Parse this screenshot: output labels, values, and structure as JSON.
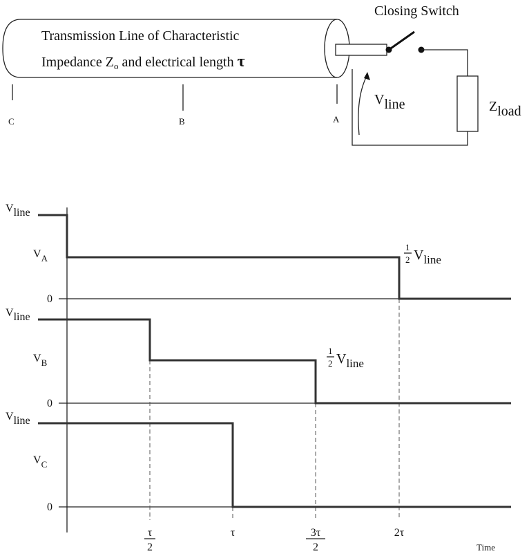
{
  "switch_label": "Closing Switch",
  "line_label": {
    "line1": "Transmission Line of Characteristic",
    "line2_pre": "Impedance  Z",
    "line2_sub": "o",
    "line2_post": " and electrical length ",
    "tau": "τ"
  },
  "points": [
    "C",
    "B",
    "A"
  ],
  "v_line": {
    "main": "V",
    "sub": "line"
  },
  "z_load": {
    "main": "Z",
    "sub": "load"
  },
  "plots": [
    {
      "level": {
        "main": "V",
        "sub": "line"
      },
      "name": {
        "main": "V",
        "sub": "A"
      },
      "zero": "0",
      "half": {
        "num": "1",
        "den": "2",
        "main": "V",
        "sub": "line"
      }
    },
    {
      "level": {
        "main": "V",
        "sub": "line"
      },
      "name": {
        "main": "V",
        "sub": "B"
      },
      "zero": "0",
      "half": {
        "num": "1",
        "den": "2",
        "main": "V",
        "sub": "line"
      }
    },
    {
      "level": {
        "main": "V",
        "sub": "line"
      },
      "name": {
        "main": "V",
        "sub": "C"
      },
      "zero": "0"
    }
  ],
  "time_axis": {
    "ticks": [
      {
        "num": "τ",
        "den": "2"
      },
      {
        "label": "τ"
      },
      {
        "num": "3τ",
        "den": "2"
      },
      {
        "label": "2τ"
      }
    ],
    "label": "Time"
  }
}
